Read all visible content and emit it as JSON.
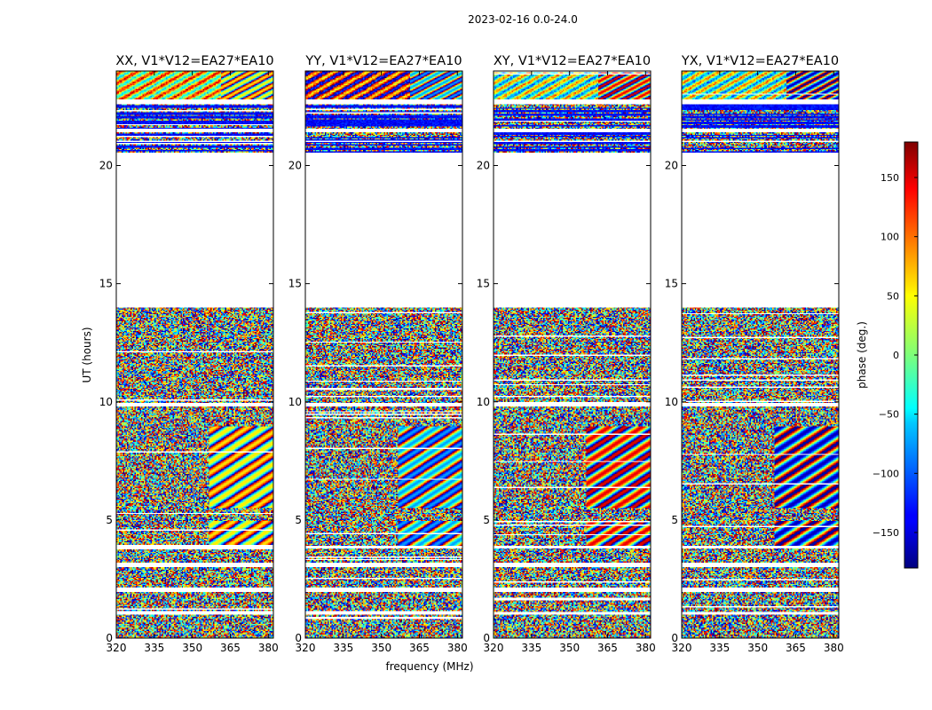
{
  "chart_data": {
    "type": "heatmap",
    "suptitle": "2023-02-16 0.0-24.0",
    "xlabel": "frequency (MHz)",
    "ylabel": "UT (hours)",
    "xlim": [
      320,
      382
    ],
    "ylim": [
      0,
      24
    ],
    "xticks": [
      320,
      335,
      350,
      365,
      380
    ],
    "yticks": [
      0,
      5,
      10,
      15,
      20
    ],
    "panels": [
      {
        "title": "XX, V1*V12=EA27*EA10",
        "pol": "XX"
      },
      {
        "title": "YY, V1*V12=EA27*EA10",
        "pol": "YY"
      },
      {
        "title": "XY, V1*V12=EA27*EA10",
        "pol": "XY"
      },
      {
        "title": "YX, V1*V12=EA27*EA10",
        "pol": "YX"
      }
    ],
    "data_segments_ut_hours": [
      [
        0.0,
        1.0
      ],
      [
        1.1,
        2.0
      ],
      [
        2.2,
        3.0
      ],
      [
        3.2,
        3.8
      ],
      [
        3.9,
        9.8
      ],
      [
        10.0,
        14.0
      ],
      [
        20.6,
        21.0
      ],
      [
        21.1,
        21.4
      ],
      [
        21.6,
        22.6
      ],
      [
        22.8,
        24.0
      ]
    ],
    "colorbar": {
      "label": "phase (deg.)",
      "range": [
        -180,
        180
      ],
      "ticks": [
        150,
        100,
        50,
        0,
        -50,
        -100,
        -150
      ],
      "tick_labels": [
        "150",
        "100",
        "50",
        "0",
        "−50",
        "−100",
        "−150"
      ],
      "colormap": "jet"
    }
  }
}
